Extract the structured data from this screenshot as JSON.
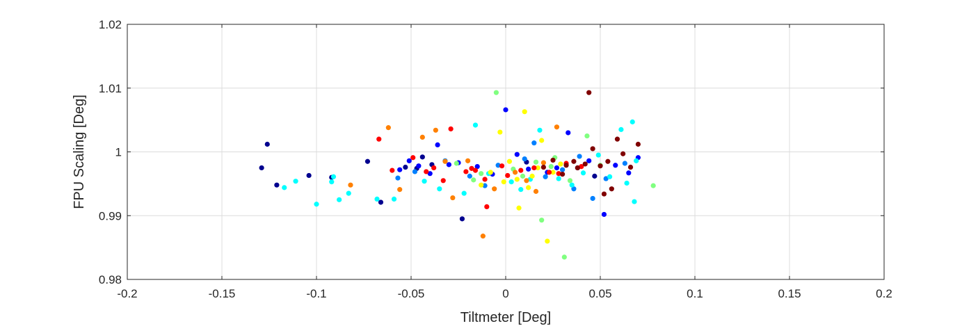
{
  "chart_data": {
    "type": "scatter",
    "title": "",
    "xlabel": "Tiltmeter [Deg]",
    "ylabel": "FPU Scaling [Deg]",
    "xlim": [
      -0.2,
      0.2
    ],
    "ylim": [
      0.98,
      1.02
    ],
    "xticks": [
      -0.2,
      -0.15,
      -0.1,
      -0.05,
      0,
      0.05,
      0.1,
      0.15,
      0.2
    ],
    "xtick_labels": [
      "-0.2",
      "-0.15",
      "-0.1",
      "-0.05",
      "0",
      "0.05",
      "0.1",
      "0.15",
      "0.2"
    ],
    "yticks": [
      0.98,
      0.99,
      1.0,
      1.01,
      1.02
    ],
    "ytick_labels": [
      "0.98",
      "0.99",
      "1",
      "1.01",
      "1.02"
    ],
    "grid": true,
    "colors": [
      "#00008f",
      "#0000ff",
      "#0080ff",
      "#00ffff",
      "#80ff80",
      "#ffff00",
      "#ff8000",
      "#ff0000",
      "#800000"
    ],
    "points": [
      [
        -0.129,
        0.9975,
        0
      ],
      [
        -0.126,
        1.0012,
        0
      ],
      [
        -0.121,
        0.9948,
        0
      ],
      [
        -0.104,
        0.9963,
        0
      ],
      [
        -0.092,
        0.996,
        0
      ],
      [
        -0.073,
        0.9985,
        0
      ],
      [
        -0.066,
        0.9921,
        0
      ],
      [
        -0.053,
        0.9976,
        0
      ],
      [
        -0.047,
        0.9974,
        0
      ],
      [
        -0.044,
        0.9992,
        0
      ],
      [
        -0.039,
        0.998,
        0
      ],
      [
        0.011,
        0.9984,
        0
      ],
      [
        0.038,
        0.9975,
        0
      ],
      [
        0.047,
        0.9962,
        0
      ],
      [
        -0.023,
        0.9895,
        0
      ],
      [
        -0.056,
        0.9972,
        1
      ],
      [
        -0.051,
        0.9986,
        1
      ],
      [
        -0.046,
        0.9978,
        1
      ],
      [
        -0.04,
        0.9966,
        1
      ],
      [
        -0.036,
        1.0011,
        1
      ],
      [
        -0.025,
        0.9983,
        1
      ],
      [
        -0.015,
        0.9977,
        1
      ],
      [
        -0.007,
        0.9965,
        1
      ],
      [
        0.0,
        1.0066,
        1
      ],
      [
        0.006,
        0.9996,
        1
      ],
      [
        0.012,
        0.9973,
        1
      ],
      [
        0.022,
        0.9968,
        1
      ],
      [
        0.033,
        1.003,
        1
      ],
      [
        0.044,
        0.9986,
        1
      ],
      [
        0.052,
        0.9902,
        1
      ],
      [
        0.058,
        0.9979,
        1
      ],
      [
        0.065,
        0.9967,
        1
      ],
      [
        0.07,
        0.9991,
        1
      ],
      [
        -0.03,
        0.998,
        1
      ],
      [
        0.027,
        0.9975,
        1
      ],
      [
        -0.057,
        0.9959,
        2
      ],
      [
        -0.048,
        0.9969,
        2
      ],
      [
        -0.032,
        0.9986,
        2
      ],
      [
        -0.019,
        0.9962,
        2
      ],
      [
        -0.004,
        0.9979,
        2
      ],
      [
        0.01,
        0.9989,
        2
      ],
      [
        0.021,
        0.9961,
        2
      ],
      [
        0.03,
        0.9972,
        2
      ],
      [
        0.039,
        0.9993,
        2
      ],
      [
        0.046,
        0.9927,
        2
      ],
      [
        0.053,
        0.9958,
        2
      ],
      [
        0.063,
        0.9982,
        2
      ],
      [
        0.015,
        1.0014,
        2
      ],
      [
        -0.011,
        0.9947,
        2
      ],
      [
        0.036,
        0.9942,
        2
      ],
      [
        -0.117,
        0.9944,
        3
      ],
      [
        -0.111,
        0.9954,
        3
      ],
      [
        -0.1,
        0.9918,
        3
      ],
      [
        -0.091,
        0.9961,
        3
      ],
      [
        -0.088,
        0.9925,
        3
      ],
      [
        -0.083,
        0.9935,
        3
      ],
      [
        -0.068,
        0.9926,
        3
      ],
      [
        -0.059,
        0.9926,
        3
      ],
      [
        -0.043,
        0.9954,
        3
      ],
      [
        -0.035,
        0.9942,
        3
      ],
      [
        -0.022,
        0.9935,
        3
      ],
      [
        -0.016,
        1.0042,
        3
      ],
      [
        -0.009,
        0.9966,
        3
      ],
      [
        0.003,
        0.9953,
        3
      ],
      [
        0.008,
        0.9941,
        3
      ],
      [
        0.018,
        1.0034,
        3
      ],
      [
        0.028,
        0.9958,
        3
      ],
      [
        0.035,
        0.9948,
        3
      ],
      [
        0.041,
        0.9967,
        3
      ],
      [
        0.049,
        0.9995,
        3
      ],
      [
        0.055,
        0.9961,
        3
      ],
      [
        0.061,
        1.0035,
        3
      ],
      [
        0.064,
        0.9951,
        3
      ],
      [
        0.067,
        1.0047,
        3
      ],
      [
        0.068,
        0.9922,
        3
      ],
      [
        0.069,
        0.9986,
        3
      ],
      [
        -0.092,
        0.9953,
        3
      ],
      [
        0.013,
        0.9957,
        3
      ],
      [
        -0.026,
        0.9982,
        4
      ],
      [
        -0.013,
        0.9966,
        4
      ],
      [
        -0.005,
        1.0093,
        4
      ],
      [
        0.004,
        0.9973,
        4
      ],
      [
        0.009,
        0.9962,
        4
      ],
      [
        0.016,
        0.9984,
        4
      ],
      [
        0.019,
        0.9893,
        4
      ],
      [
        0.024,
        0.9977,
        4
      ],
      [
        0.031,
        0.9835,
        4
      ],
      [
        0.034,
        0.9955,
        4
      ],
      [
        0.043,
        1.0025,
        4
      ],
      [
        0.05,
        0.9979,
        4
      ],
      [
        0.078,
        0.9947,
        4
      ],
      [
        -0.017,
        0.9956,
        4
      ],
      [
        0.026,
        0.9991,
        4
      ],
      [
        -0.008,
        0.9968,
        5
      ],
      [
        -0.003,
        1.0031,
        5
      ],
      [
        0.002,
        0.9985,
        5
      ],
      [
        0.006,
        0.9957,
        5
      ],
      [
        0.01,
        1.0063,
        5
      ],
      [
        0.014,
        0.9962,
        5
      ],
      [
        0.017,
        0.9975,
        5
      ],
      [
        0.022,
        0.986,
        5
      ],
      [
        0.025,
        0.9968,
        5
      ],
      [
        0.029,
        0.9981,
        5
      ],
      [
        0.007,
        0.9912,
        5
      ],
      [
        0.019,
        1.0018,
        5
      ],
      [
        -0.013,
        0.9948,
        5
      ],
      [
        0.012,
        0.9944,
        5
      ],
      [
        -0.001,
        0.9953,
        5
      ],
      [
        -0.062,
        1.0038,
        6
      ],
      [
        -0.056,
        0.9941,
        6
      ],
      [
        -0.044,
        1.0023,
        6
      ],
      [
        -0.037,
        1.0034,
        6
      ],
      [
        -0.032,
        0.9985,
        6
      ],
      [
        -0.028,
        0.9928,
        6
      ],
      [
        -0.02,
        0.9986,
        6
      ],
      [
        -0.012,
        0.9868,
        6
      ],
      [
        -0.006,
        0.9942,
        6
      ],
      [
        0.005,
        0.9968,
        6
      ],
      [
        0.011,
        0.9955,
        6
      ],
      [
        0.02,
        0.9983,
        6
      ],
      [
        0.027,
        1.0039,
        6
      ],
      [
        0.016,
        0.9938,
        6
      ],
      [
        -0.082,
        0.9948,
        6
      ],
      [
        -0.067,
        1.002,
        7
      ],
      [
        -0.049,
        0.9991,
        7
      ],
      [
        -0.038,
        0.9975,
        7
      ],
      [
        -0.033,
        0.9955,
        7
      ],
      [
        -0.029,
        1.0036,
        7
      ],
      [
        -0.021,
        0.9969,
        7
      ],
      [
        -0.018,
        0.9974,
        7
      ],
      [
        -0.011,
        0.9957,
        7
      ],
      [
        -0.002,
        0.9978,
        7
      ],
      [
        0.001,
        0.9963,
        7
      ],
      [
        0.008,
        0.9971,
        7
      ],
      [
        0.015,
        0.9975,
        7
      ],
      [
        0.023,
        0.9968,
        7
      ],
      [
        0.028,
        0.9966,
        7
      ],
      [
        0.032,
        0.9982,
        7
      ],
      [
        0.04,
        0.9977,
        7
      ],
      [
        -0.01,
        0.9914,
        7
      ],
      [
        -0.042,
        0.9969,
        7
      ],
      [
        -0.06,
        0.9971,
        7
      ],
      [
        -0.016,
        0.9971,
        7
      ],
      [
        0.032,
        0.9979,
        8
      ],
      [
        0.036,
        0.9985,
        8
      ],
      [
        0.042,
        0.9981,
        8
      ],
      [
        0.044,
        1.0093,
        8
      ],
      [
        0.046,
        1.0005,
        8
      ],
      [
        0.05,
        0.9978,
        8
      ],
      [
        0.052,
        0.9934,
        8
      ],
      [
        0.056,
        0.9942,
        8
      ],
      [
        0.059,
        1.002,
        8
      ],
      [
        0.062,
        0.9997,
        8
      ],
      [
        0.066,
        0.9976,
        8
      ],
      [
        0.07,
        1.0012,
        8
      ],
      [
        0.025,
        0.9987,
        8
      ],
      [
        0.02,
        0.9976,
        8
      ],
      [
        0.03,
        0.9965,
        8
      ],
      [
        0.038,
        0.9975,
        8
      ],
      [
        0.054,
        0.9985,
        8
      ]
    ]
  }
}
